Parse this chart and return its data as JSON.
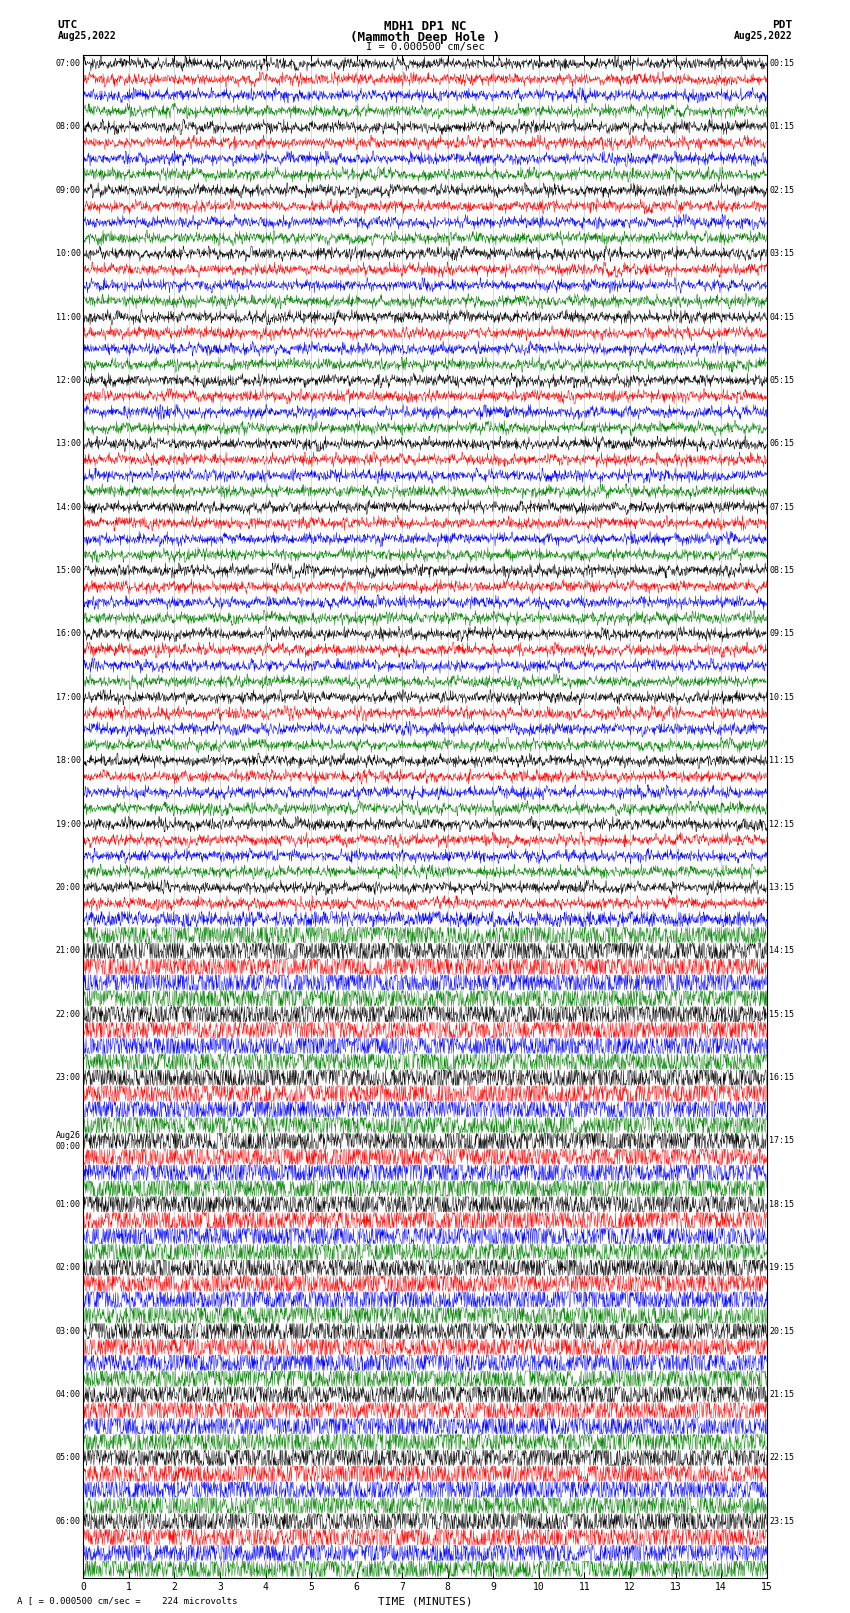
{
  "title_line1": "MDH1 DP1 NC",
  "title_line2": "(Mammoth Deep Hole )",
  "scale_bar_text": "I = 0.000500 cm/sec",
  "utc_header": "UTC",
  "utc_date": "Aug25,2022",
  "pdt_header": "PDT",
  "pdt_date": "Aug25,2022",
  "bottom_label": "TIME (MINUTES)",
  "bottom_note": "A [ = 0.000500 cm/sec =    224 microvolts",
  "utc_hour_labels": [
    "07:00",
    "08:00",
    "09:00",
    "10:00",
    "11:00",
    "12:00",
    "13:00",
    "14:00",
    "15:00",
    "16:00",
    "17:00",
    "18:00",
    "19:00",
    "20:00",
    "21:00",
    "22:00",
    "23:00",
    "Aug26\n00:00",
    "01:00",
    "02:00",
    "03:00",
    "04:00",
    "05:00",
    "06:00"
  ],
  "pdt_hour_labels": [
    "00:15",
    "01:15",
    "02:15",
    "03:15",
    "04:15",
    "05:15",
    "06:15",
    "07:15",
    "08:15",
    "09:15",
    "10:15",
    "11:15",
    "12:15",
    "13:15",
    "14:15",
    "15:15",
    "16:15",
    "17:15",
    "18:15",
    "19:15",
    "20:15",
    "21:15",
    "22:15",
    "23:15"
  ],
  "num_hours": 24,
  "channels": 4,
  "colors": [
    "black",
    "red",
    "blue",
    "green"
  ],
  "x_ticks": [
    0,
    1,
    2,
    3,
    4,
    5,
    6,
    7,
    8,
    9,
    10,
    11,
    12,
    13,
    14,
    15
  ],
  "bg_color": "#ffffff",
  "noise_amplitudes": [
    0.3,
    0.3,
    0.3,
    0.3,
    0.3,
    0.3,
    0.3,
    0.3,
    0.3,
    0.3,
    0.3,
    0.3,
    0.3,
    0.3,
    0.3,
    0.3,
    0.3,
    0.3,
    0.3,
    0.3,
    0.3,
    0.3,
    0.3,
    0.3,
    0.3,
    0.3,
    0.3,
    0.3,
    0.3,
    0.3,
    0.3,
    0.3,
    0.3,
    0.3,
    0.3,
    0.3,
    0.3,
    0.3,
    0.3,
    0.3,
    0.3,
    0.3,
    0.3,
    0.3,
    0.3,
    0.3,
    0.3,
    0.3,
    0.3,
    0.3,
    0.3,
    0.3,
    0.3,
    0.3,
    0.45,
    0.9,
    0.9,
    0.9,
    0.9,
    0.9,
    0.9,
    0.9,
    0.9,
    0.9,
    0.9,
    0.9,
    0.9,
    0.9,
    0.9,
    0.9,
    0.9,
    0.9,
    0.9,
    0.9,
    0.9,
    0.9,
    0.9,
    0.9,
    0.9,
    0.9,
    0.9,
    0.9,
    0.9,
    0.9,
    0.9,
    0.9,
    0.9,
    0.9,
    0.9,
    0.9,
    0.9,
    0.9,
    0.9,
    0.9,
    0.9,
    0.9
  ],
  "grid_color": "#aaaaaa",
  "grid_linewidth": 0.4
}
